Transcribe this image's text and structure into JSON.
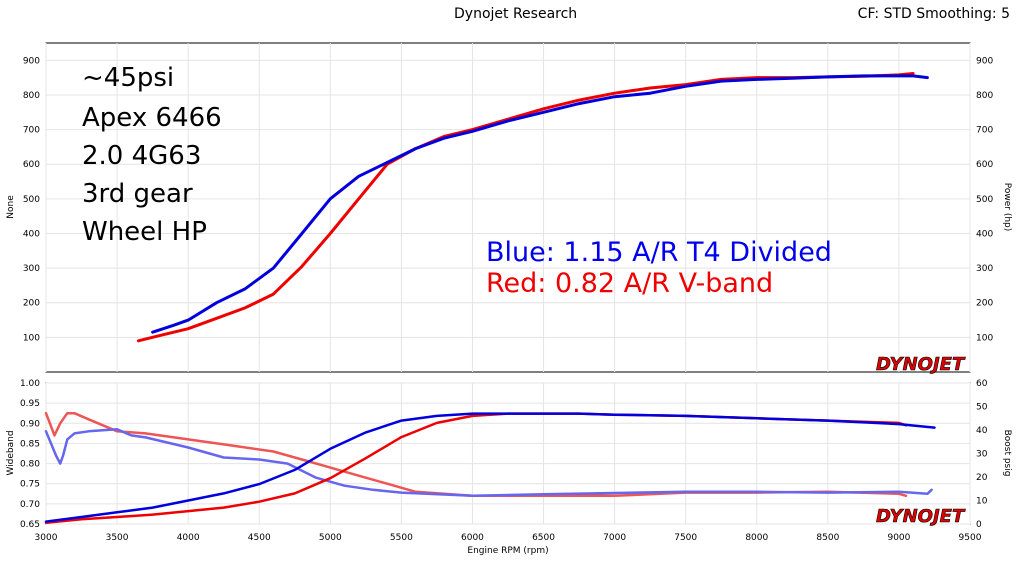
{
  "header": {
    "title": "Dynojet Research",
    "info": "CF: STD Smoothing: 5"
  },
  "logo": {
    "text": "DYNOJET"
  },
  "chart_data": [
    {
      "type": "line",
      "xlabel": "",
      "ylabel": "None",
      "ylabel_right": "Power (hp)",
      "xlim": [
        3000,
        9500
      ],
      "ylim": [
        0,
        950
      ],
      "yticks": [
        100,
        200,
        300,
        400,
        500,
        600,
        700,
        800,
        900
      ],
      "notes": [
        "~45psi",
        "Apex 6466",
        "2.0 4G63",
        "3rd gear",
        "Wheel HP"
      ],
      "legend": [
        {
          "text": "Blue: 1.15 A/R T4 Divided",
          "color": "#0000ee"
        },
        {
          "text": "Red:  0.82 A/R V-band",
          "color": "#ee0000"
        }
      ],
      "series": [
        {
          "color": "#0000dd",
          "x": [
            3750,
            3900,
            4000,
            4200,
            4400,
            4600,
            4800,
            5000,
            5200,
            5400,
            5600,
            5800,
            6000,
            6250,
            6500,
            6750,
            7000,
            7250,
            7500,
            7750,
            8000,
            8250,
            8500,
            8750,
            9000,
            9100,
            9200
          ],
          "y": [
            115,
            135,
            150,
            200,
            240,
            300,
            400,
            500,
            565,
            605,
            645,
            675,
            695,
            725,
            750,
            775,
            795,
            805,
            825,
            840,
            845,
            848,
            852,
            855,
            855,
            855,
            850
          ]
        },
        {
          "color": "#ee0000",
          "x": [
            3650,
            3800,
            4000,
            4200,
            4400,
            4600,
            4800,
            5000,
            5200,
            5400,
            5600,
            5800,
            6000,
            6250,
            6500,
            6750,
            7000,
            7250,
            7500,
            7750,
            8000,
            8250,
            8500,
            8750,
            9000,
            9100
          ],
          "y": [
            90,
            105,
            125,
            155,
            185,
            225,
            305,
            400,
            500,
            600,
            645,
            680,
            700,
            730,
            760,
            785,
            805,
            820,
            830,
            845,
            850,
            850,
            852,
            854,
            858,
            862
          ]
        }
      ]
    },
    {
      "type": "line",
      "xlabel": "Engine RPM  (rpm)",
      "ylabel": "Wideband",
      "ylabel_right": "Boost psig",
      "xlim": [
        3000,
        9500
      ],
      "ylim": [
        0.65,
        1.0
      ],
      "ylim_right": [
        0,
        60
      ],
      "xticks": [
        3000,
        3500,
        4000,
        4500,
        5000,
        5500,
        6000,
        6500,
        7000,
        7500,
        8000,
        8500,
        9000,
        9500
      ],
      "yticks": [
        "0.65",
        "0.70",
        "0.75",
        "0.80",
        "0.85",
        "0.90",
        "0.95",
        "1.00"
      ],
      "yticks_right": [
        0,
        10,
        20,
        30,
        40,
        50,
        60
      ],
      "series": [
        {
          "color": "#0000dd",
          "axis": "right",
          "x": [
            3000,
            3250,
            3500,
            3750,
            4000,
            4250,
            4500,
            4750,
            5000,
            5250,
            5500,
            5750,
            6000,
            6250,
            6500,
            6750,
            7000,
            7500,
            8000,
            8500,
            9000,
            9250
          ],
          "y": [
            1,
            3,
            5,
            7,
            10,
            13,
            17,
            23,
            32,
            39,
            44,
            46,
            47,
            47,
            47,
            47,
            46.5,
            46,
            45,
            44,
            42.5,
            41
          ]
        },
        {
          "color": "#ee0000",
          "axis": "right",
          "x": [
            3000,
            3250,
            3500,
            3750,
            4000,
            4250,
            4500,
            4750,
            5000,
            5250,
            5500,
            5750,
            6000,
            6250,
            6500,
            6750,
            7000,
            7500,
            8000,
            8500,
            9000,
            9050
          ],
          "y": [
            0.5,
            2,
            3,
            4,
            5.5,
            7,
            9.5,
            13,
            19.5,
            28,
            37,
            43,
            46,
            47,
            47,
            47,
            46.5,
            46,
            45,
            44,
            43,
            42
          ]
        },
        {
          "color": "#6666ee",
          "axis": "left",
          "x": [
            3000,
            3070,
            3100,
            3120,
            3150,
            3200,
            3300,
            3500,
            3600,
            3700,
            4000,
            4250,
            4500,
            4700,
            4900,
            5100,
            5300,
            5500,
            6000,
            6500,
            7000,
            7500,
            8000,
            8500,
            9000,
            9200,
            9230
          ],
          "y": [
            0.88,
            0.82,
            0.8,
            0.82,
            0.86,
            0.875,
            0.88,
            0.885,
            0.87,
            0.865,
            0.84,
            0.815,
            0.81,
            0.8,
            0.765,
            0.745,
            0.735,
            0.728,
            0.72,
            0.724,
            0.727,
            0.73,
            0.73,
            0.728,
            0.73,
            0.725,
            0.735
          ]
        },
        {
          "color": "#ee5555",
          "axis": "left",
          "x": [
            3000,
            3060,
            3100,
            3150,
            3200,
            3300,
            3500,
            3700,
            4000,
            4300,
            4600,
            4800,
            5000,
            5200,
            5400,
            5600,
            6000,
            6500,
            7000,
            7500,
            8000,
            8500,
            9000,
            9050
          ],
          "y": [
            0.925,
            0.87,
            0.9,
            0.925,
            0.925,
            0.91,
            0.88,
            0.875,
            0.86,
            0.845,
            0.83,
            0.81,
            0.79,
            0.77,
            0.75,
            0.73,
            0.72,
            0.72,
            0.72,
            0.728,
            0.728,
            0.73,
            0.725,
            0.72
          ]
        }
      ]
    }
  ]
}
